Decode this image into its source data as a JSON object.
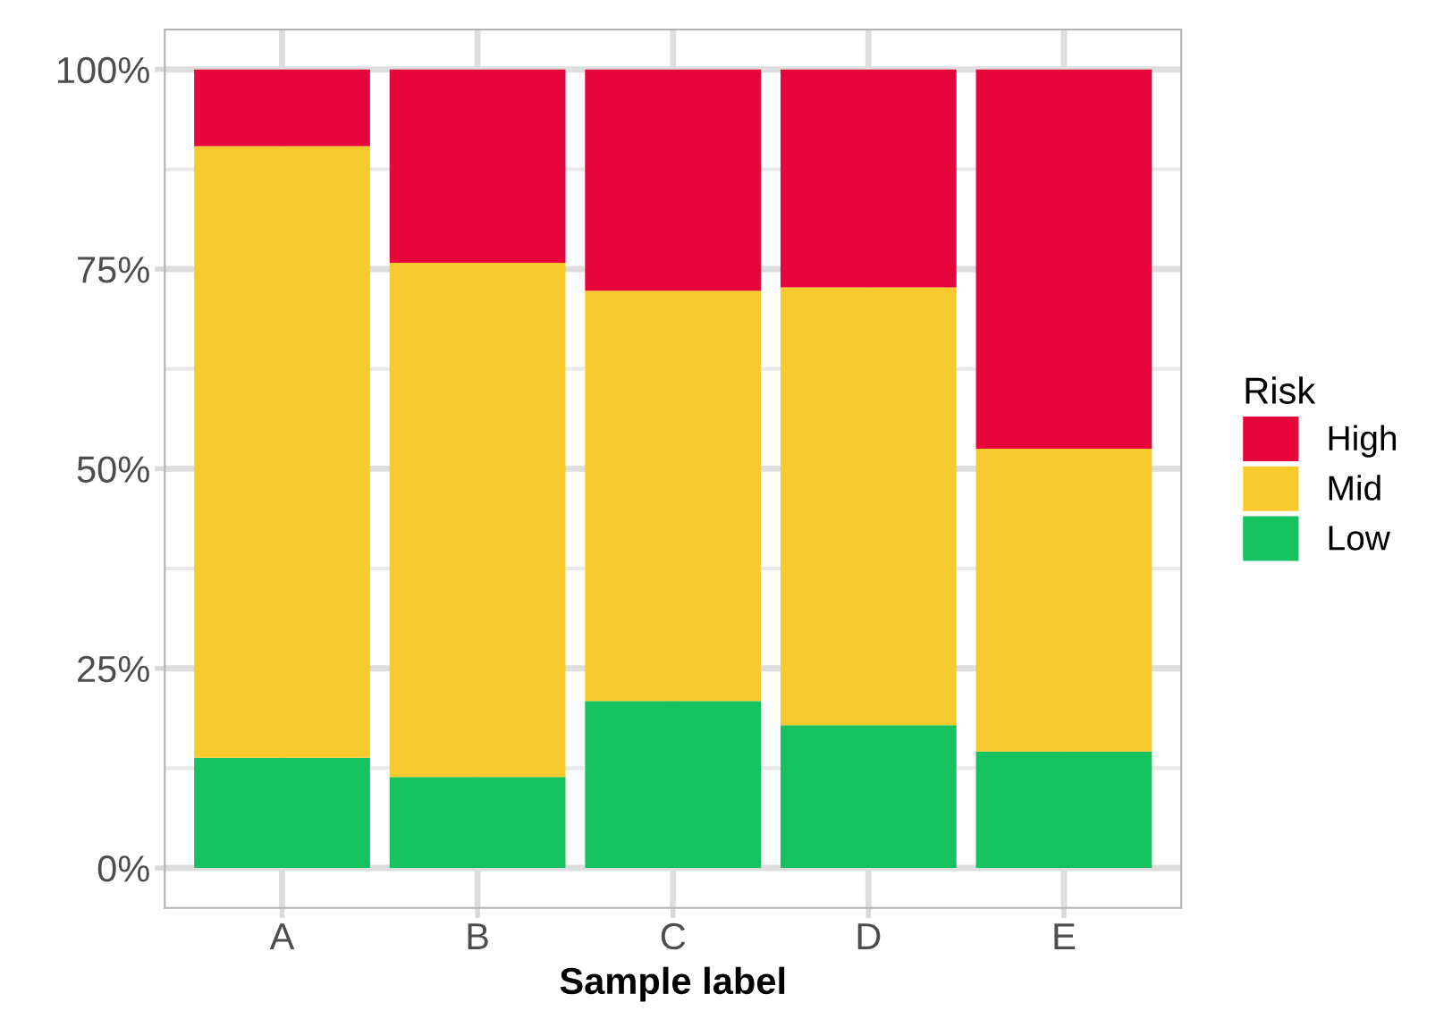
{
  "chart_data": {
    "type": "bar",
    "stacked": true,
    "xlabel": "Sample label",
    "legend_title": "Risk",
    "legend": "right",
    "grid": true,
    "categories": [
      "A",
      "B",
      "C",
      "D",
      "E"
    ],
    "series": [
      {
        "name": "Low",
        "color": "#16c160",
        "values": [
          13.8,
          11.4,
          20.9,
          17.9,
          14.6
        ]
      },
      {
        "name": "Mid",
        "color": "#f7cb2d",
        "values": [
          76.6,
          64.4,
          51.4,
          54.8,
          37.9
        ]
      },
      {
        "name": "High",
        "color": "#e6063b",
        "values": [
          9.6,
          24.2,
          27.7,
          27.3,
          47.5
        ]
      }
    ],
    "ylim": [
      -5,
      105
    ],
    "yticks": [
      {
        "value": 0,
        "label": "0%"
      },
      {
        "value": 25,
        "label": "25%"
      },
      {
        "value": 50,
        "label": "50%"
      },
      {
        "value": 75,
        "label": "75%"
      },
      {
        "value": 100,
        "label": "100%"
      }
    ]
  }
}
